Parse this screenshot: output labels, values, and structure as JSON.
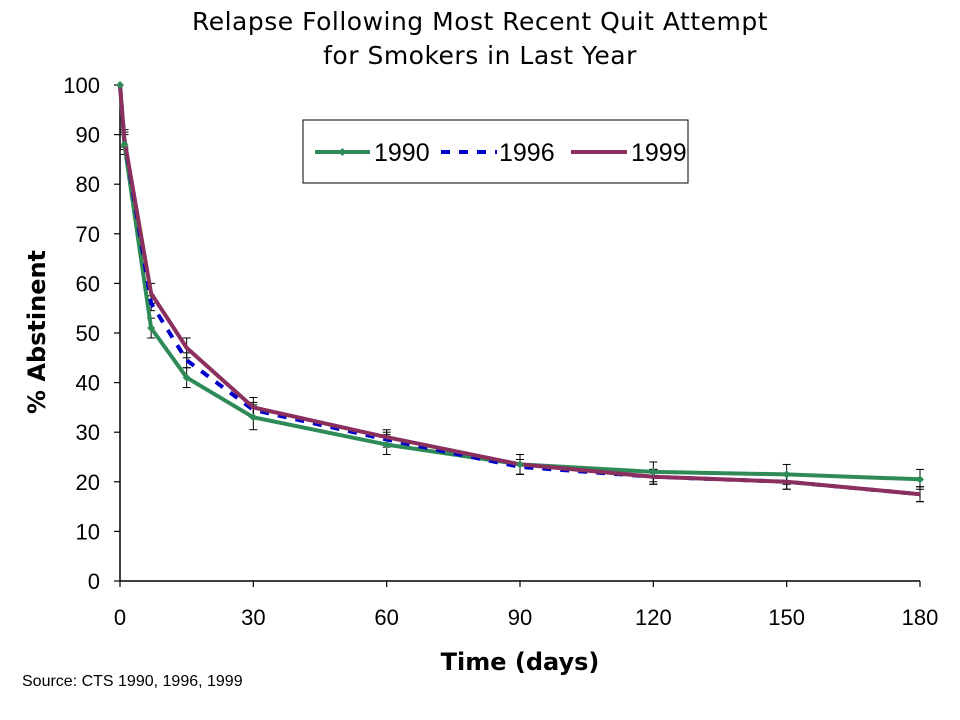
{
  "chart_data": {
    "type": "line",
    "title_lines": [
      "Relapse Following Most Recent Quit Attempt",
      "for Smokers in Last Year"
    ],
    "xlabel": "Time (days)",
    "ylabel": "% Abstinent",
    "xlim": [
      0,
      180
    ],
    "ylim": [
      0,
      100
    ],
    "x_ticks": [
      "0",
      "30",
      "60",
      "90",
      "120",
      "150",
      "180"
    ],
    "y_ticks": [
      "0",
      "10",
      "20",
      "30",
      "40",
      "50",
      "60",
      "70",
      "80",
      "90",
      "100"
    ],
    "grid": false,
    "legend_position": "top-center",
    "series": [
      {
        "name": "1990",
        "color": "#2e8b57",
        "style": "solid-with-diamond-markers",
        "x": [
          0,
          1,
          7,
          15,
          30,
          60,
          90,
          120,
          150,
          180
        ],
        "y": [
          100,
          88,
          51,
          41,
          33,
          27.5,
          23.5,
          22,
          21.5,
          20.5
        ],
        "error": [
          0,
          2,
          2,
          2,
          2.5,
          2,
          2,
          2,
          2,
          2
        ]
      },
      {
        "name": "1996",
        "color": "#0000cc",
        "style": "dashed",
        "x": [
          0,
          1,
          7,
          15,
          30,
          60,
          90,
          120,
          150,
          180
        ],
        "y": [
          100,
          89,
          56,
          44.5,
          34.5,
          28.5,
          23,
          21,
          20,
          17.5
        ],
        "error": [
          0,
          1.5,
          1.5,
          1.5,
          1.5,
          1.5,
          1.5,
          1.5,
          1.5,
          1.5
        ]
      },
      {
        "name": "1999",
        "color": "#8b2f5f",
        "style": "solid",
        "x": [
          0,
          1,
          7,
          15,
          30,
          60,
          90,
          120,
          150,
          180
        ],
        "y": [
          100,
          89,
          58,
          47,
          35,
          29,
          23.5,
          21,
          20,
          17.5
        ],
        "error": [
          0,
          2,
          2,
          2,
          2,
          1.5,
          2,
          1.5,
          1.5,
          1.5
        ]
      }
    ],
    "source": "Source:  CTS 1990, 1996, 1999"
  }
}
